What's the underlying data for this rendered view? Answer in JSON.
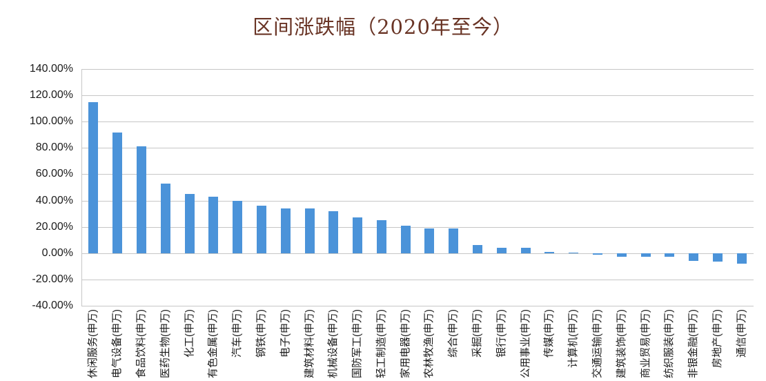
{
  "chart_data": {
    "type": "bar",
    "title": "区间涨跌幅（2020年至今）",
    "categories": [
      "休闲服务(申万)",
      "电气设备(申万)",
      "食品饮料(申万)",
      "医药生物(申万)",
      "化工(申万)",
      "有色金属(申万)",
      "汽车(申万)",
      "钢铁(申万)",
      "电子(申万)",
      "建筑材料(申万)",
      "机械设备(申万)",
      "国防军工(申万)",
      "轻工制造(申万)",
      "家用电器(申万)",
      "农林牧渔(申万)",
      "综合(申万)",
      "采掘(申万)",
      "银行(申万)",
      "公用事业(申万)",
      "传媒(申万)",
      "计算机(申万)",
      "交通运输(申万)",
      "建筑装饰(申万)",
      "商业贸易(申万)",
      "纺织服装(申万)",
      "非银金融(申万)",
      "房地产(申万)",
      "通信(申万)"
    ],
    "values": [
      115,
      92,
      81,
      53,
      45,
      43,
      40,
      36,
      34,
      34,
      32,
      27,
      25,
      21,
      19,
      19,
      6,
      4,
      4,
      1,
      0.5,
      -1,
      -3,
      -3,
      -3,
      -6,
      -6.5,
      -8
    ],
    "unit": "percent",
    "xlabel": "",
    "ylabel": "",
    "ylim": [
      -40,
      140
    ],
    "ytick_step": 20,
    "ytick_labels": [
      "140.00%",
      "120.00%",
      "100.00%",
      "80.00%",
      "60.00%",
      "40.00%",
      "20.00%",
      "0.00%",
      "-20.00%",
      "-40.00%"
    ],
    "grid": true,
    "legend": "none",
    "bar_color": "#4b93d9",
    "title_color": "#693425",
    "grid_color": "#c6c6c6",
    "axis_color": "#c6c6c6"
  }
}
